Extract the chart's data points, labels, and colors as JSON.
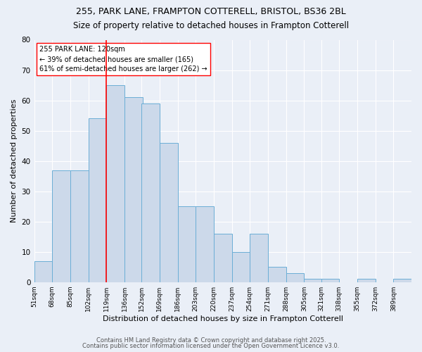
{
  "title1": "255, PARK LANE, FRAMPTON COTTERELL, BRISTOL, BS36 2BL",
  "title2": "Size of property relative to detached houses in Frampton Cotterell",
  "xlabel": "Distribution of detached houses by size in Frampton Cotterell",
  "ylabel": "Number of detached properties",
  "bins": [
    51,
    68,
    85,
    102,
    119,
    136,
    152,
    169,
    186,
    203,
    220,
    237,
    254,
    271,
    288,
    305,
    321,
    338,
    355,
    372,
    389
  ],
  "counts": [
    7,
    37,
    37,
    54,
    65,
    61,
    59,
    46,
    25,
    25,
    16,
    10,
    16,
    5,
    3,
    1,
    1,
    0,
    1,
    0,
    1
  ],
  "bar_color": "#ccd9ea",
  "bar_edge_color": "#6baed6",
  "red_line_x": 119,
  "ylim": [
    0,
    80
  ],
  "yticks": [
    0,
    10,
    20,
    30,
    40,
    50,
    60,
    70,
    80
  ],
  "annotation_title": "255 PARK LANE: 120sqm",
  "annotation_line1": "← 39% of detached houses are smaller (165)",
  "annotation_line2": "61% of semi-detached houses are larger (262) →",
  "footer1": "Contains HM Land Registry data © Crown copyright and database right 2025.",
  "footer2": "Contains public sector information licensed under the Open Government Licence v3.0.",
  "bg_color": "#eaeff7",
  "plot_bg_color": "#eaeff7",
  "grid_color": "#ffffff",
  "title_fontsize": 9,
  "subtitle_fontsize": 8.5
}
